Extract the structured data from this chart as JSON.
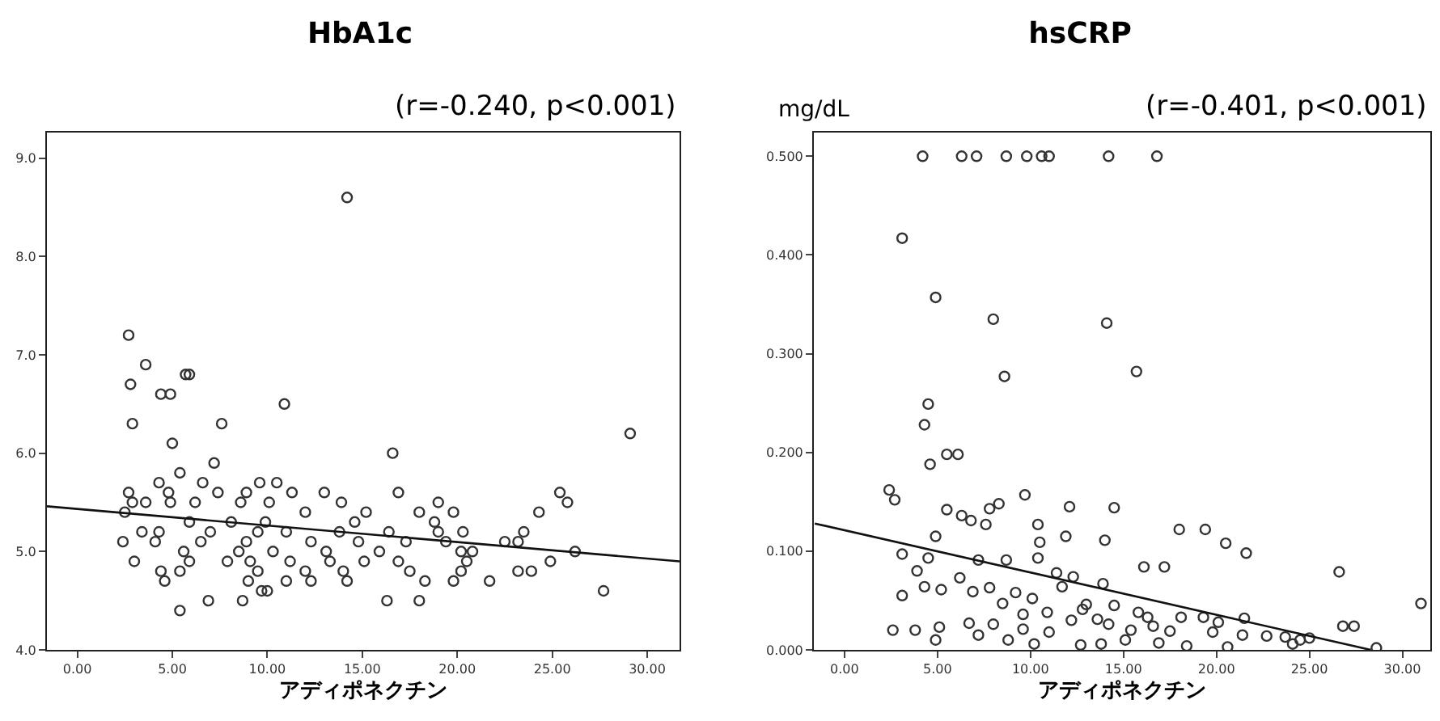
{
  "chart_data": [
    {
      "type": "scatter",
      "title": "HbA1c",
      "xlabel": "アディポネクチン",
      "annotations": [
        "(r=-0.240, p<0.001)"
      ],
      "grid": false,
      "xlim": [
        -1.6,
        31.7
      ],
      "xticks": [
        {
          "value": 0,
          "label": "0.00"
        },
        {
          "value": 5,
          "label": "5.00"
        },
        {
          "value": 10,
          "label": "10.00"
        },
        {
          "value": 15,
          "label": "15.00"
        },
        {
          "value": 20,
          "label": "20.00"
        },
        {
          "value": 25,
          "label": "25.00"
        },
        {
          "value": 30,
          "label": "30.00"
        }
      ],
      "ylim": [
        4.0,
        9.26
      ],
      "yticks": [
        {
          "value": 4,
          "label": "4.0"
        },
        {
          "value": 5,
          "label": "5.0"
        },
        {
          "value": 6,
          "label": "6.0"
        },
        {
          "value": 7,
          "label": "7.0"
        },
        {
          "value": 8,
          "label": "8.0"
        },
        {
          "value": 9,
          "label": "9.0"
        }
      ],
      "series": [
        {
          "marker": "circle",
          "color": "#333333",
          "x": [
            2.7,
            2.8,
            3.6,
            4.4,
            4.9,
            5.7,
            5.9,
            10.9,
            14.2,
            2.9,
            7.6,
            5.0,
            7.2,
            16.6,
            29.1,
            5.4,
            4.3,
            6.6,
            10.5,
            9.6,
            2.7,
            4.8,
            7.4,
            8.9,
            11.3,
            13.0,
            16.9,
            25.4,
            25.8,
            19.0,
            13.9,
            2.9,
            3.6,
            4.9,
            6.2,
            8.6,
            10.1,
            2.5,
            12.0,
            15.2,
            18.0,
            19.8,
            24.3,
            5.9,
            8.1,
            9.9,
            14.6,
            18.8,
            3.4,
            4.3,
            7.0,
            9.5,
            11.0,
            13.8,
            16.4,
            19.0,
            20.3,
            23.5,
            2.4,
            4.1,
            6.5,
            8.9,
            12.3,
            14.8,
            17.3,
            22.5,
            23.2,
            19.4,
            5.6,
            8.5,
            10.3,
            13.1,
            15.9,
            20.2,
            20.8,
            26.2,
            3.0,
            5.9,
            7.9,
            9.1,
            11.2,
            13.3,
            15.1,
            16.9,
            20.5,
            24.9,
            4.4,
            5.4,
            9.5,
            12.0,
            14.0,
            17.5,
            20.2,
            23.2,
            23.9,
            4.6,
            9.0,
            11.0,
            12.3,
            14.2,
            18.3,
            19.8,
            21.7,
            9.7,
            10.0,
            27.7,
            6.9,
            8.7,
            16.3,
            18.0,
            5.4
          ],
          "values": [
            7.2,
            6.7,
            6.9,
            6.6,
            6.6,
            6.8,
            6.8,
            6.5,
            8.6,
            6.3,
            6.3,
            6.1,
            5.9,
            6.0,
            6.2,
            5.8,
            5.7,
            5.7,
            5.7,
            5.7,
            5.6,
            5.6,
            5.6,
            5.6,
            5.6,
            5.6,
            5.6,
            5.6,
            5.5,
            5.5,
            5.5,
            5.5,
            5.5,
            5.5,
            5.5,
            5.5,
            5.5,
            5.4,
            5.4,
            5.4,
            5.4,
            5.4,
            5.4,
            5.3,
            5.3,
            5.3,
            5.3,
            5.3,
            5.2,
            5.2,
            5.2,
            5.2,
            5.2,
            5.2,
            5.2,
            5.2,
            5.2,
            5.2,
            5.1,
            5.1,
            5.1,
            5.1,
            5.1,
            5.1,
            5.1,
            5.1,
            5.1,
            5.1,
            5.0,
            5.0,
            5.0,
            5.0,
            5.0,
            5.0,
            5.0,
            5.0,
            4.9,
            4.9,
            4.9,
            4.9,
            4.9,
            4.9,
            4.9,
            4.9,
            4.9,
            4.9,
            4.8,
            4.8,
            4.8,
            4.8,
            4.8,
            4.8,
            4.8,
            4.8,
            4.8,
            4.7,
            4.7,
            4.7,
            4.7,
            4.7,
            4.7,
            4.7,
            4.7,
            4.6,
            4.6,
            4.6,
            4.5,
            4.5,
            4.5,
            4.5,
            4.4
          ]
        },
        {
          "type": "line",
          "color": "#111111",
          "line_style": "solid",
          "x": [
            -1.6,
            31.7
          ],
          "values": [
            5.46,
            4.9
          ]
        }
      ]
    },
    {
      "type": "scatter",
      "title": "hsCRP",
      "ylabel": "mg/dL",
      "xlabel": "アディポネクチン",
      "annotations": [
        "(r=-0.401, p<0.001)"
      ],
      "grid": false,
      "xlim": [
        -1.65,
        31.5
      ],
      "xticks": [
        {
          "value": 0,
          "label": "0.00"
        },
        {
          "value": 5,
          "label": "5.00"
        },
        {
          "value": 10,
          "label": "10.00"
        },
        {
          "value": 15,
          "label": "15.00"
        },
        {
          "value": 20,
          "label": "20.00"
        },
        {
          "value": 25,
          "label": "25.00"
        },
        {
          "value": 30,
          "label": "30.00"
        }
      ],
      "ylim": [
        0,
        0.524
      ],
      "yticks": [
        {
          "value": 0,
          "label": "0.000"
        },
        {
          "value": 0.1,
          "label": "0.100"
        },
        {
          "value": 0.2,
          "label": "0.200"
        },
        {
          "value": 0.3,
          "label": "0.300"
        },
        {
          "value": 0.4,
          "label": "0.400"
        },
        {
          "value": 0.5,
          "label": "0.500"
        }
      ],
      "series": [
        {
          "marker": "circle",
          "color": "#333333",
          "x": [
            4.2,
            6.3,
            7.1,
            8.7,
            9.8,
            10.6,
            11.0,
            14.2,
            16.8,
            3.1,
            4.9,
            8.0,
            14.1,
            8.6,
            15.7,
            4.5,
            4.3,
            5.5,
            6.1,
            4.6,
            2.4,
            2.7,
            5.5,
            6.3,
            6.8,
            7.8,
            8.3,
            9.7,
            10.4,
            7.6,
            12.1,
            14.5,
            18.0,
            19.4,
            20.5,
            21.6,
            11.9,
            14.0,
            16.1,
            17.2,
            26.6,
            31.0,
            4.9,
            10.5,
            3.1,
            4.5,
            6.2,
            7.2,
            8.7,
            10.4,
            11.4,
            12.3,
            13.9,
            3.9,
            5.2,
            7.8,
            9.2,
            11.7,
            3.1,
            4.3,
            6.9,
            8.5,
            10.1,
            12.8,
            14.5,
            15.8,
            18.1,
            19.3,
            21.5,
            25.0,
            26.8,
            27.4,
            2.6,
            3.8,
            5.1,
            6.7,
            8.0,
            9.6,
            11.0,
            12.2,
            13.6,
            15.4,
            16.6,
            17.5,
            19.8,
            21.4,
            22.7,
            23.7,
            24.5,
            4.9,
            7.2,
            8.8,
            10.2,
            12.7,
            13.8,
            15.1,
            16.9,
            18.4,
            20.6,
            24.1,
            28.6,
            9.6,
            10.9,
            14.2,
            16.3,
            20.1,
            13.0
          ],
          "values": [
            0.5,
            0.5,
            0.5,
            0.5,
            0.5,
            0.5,
            0.5,
            0.5,
            0.5,
            0.417,
            0.357,
            0.335,
            0.331,
            0.277,
            0.282,
            0.249,
            0.228,
            0.198,
            0.198,
            0.188,
            0.162,
            0.152,
            0.142,
            0.136,
            0.131,
            0.143,
            0.148,
            0.157,
            0.127,
            0.127,
            0.145,
            0.144,
            0.122,
            0.122,
            0.108,
            0.098,
            0.115,
            0.111,
            0.084,
            0.084,
            0.079,
            0.047,
            0.115,
            0.109,
            0.097,
            0.093,
            0.073,
            0.091,
            0.091,
            0.093,
            0.078,
            0.074,
            0.067,
            0.08,
            0.061,
            0.063,
            0.058,
            0.064,
            0.055,
            0.064,
            0.059,
            0.047,
            0.052,
            0.041,
            0.045,
            0.038,
            0.033,
            0.033,
            0.032,
            0.012,
            0.024,
            0.024,
            0.02,
            0.02,
            0.023,
            0.027,
            0.026,
            0.021,
            0.018,
            0.03,
            0.031,
            0.02,
            0.024,
            0.019,
            0.018,
            0.015,
            0.014,
            0.013,
            0.01,
            0.01,
            0.015,
            0.01,
            0.006,
            0.005,
            0.006,
            0.01,
            0.007,
            0.004,
            0.003,
            0.006,
            0.002,
            0.036,
            0.038,
            0.026,
            0.033,
            0.028,
            0.046
          ]
        },
        {
          "type": "line",
          "color": "#111111",
          "line_style": "solid",
          "x": [
            -1.6,
            28.3
          ],
          "values": [
            0.128,
            0
          ]
        }
      ]
    }
  ]
}
